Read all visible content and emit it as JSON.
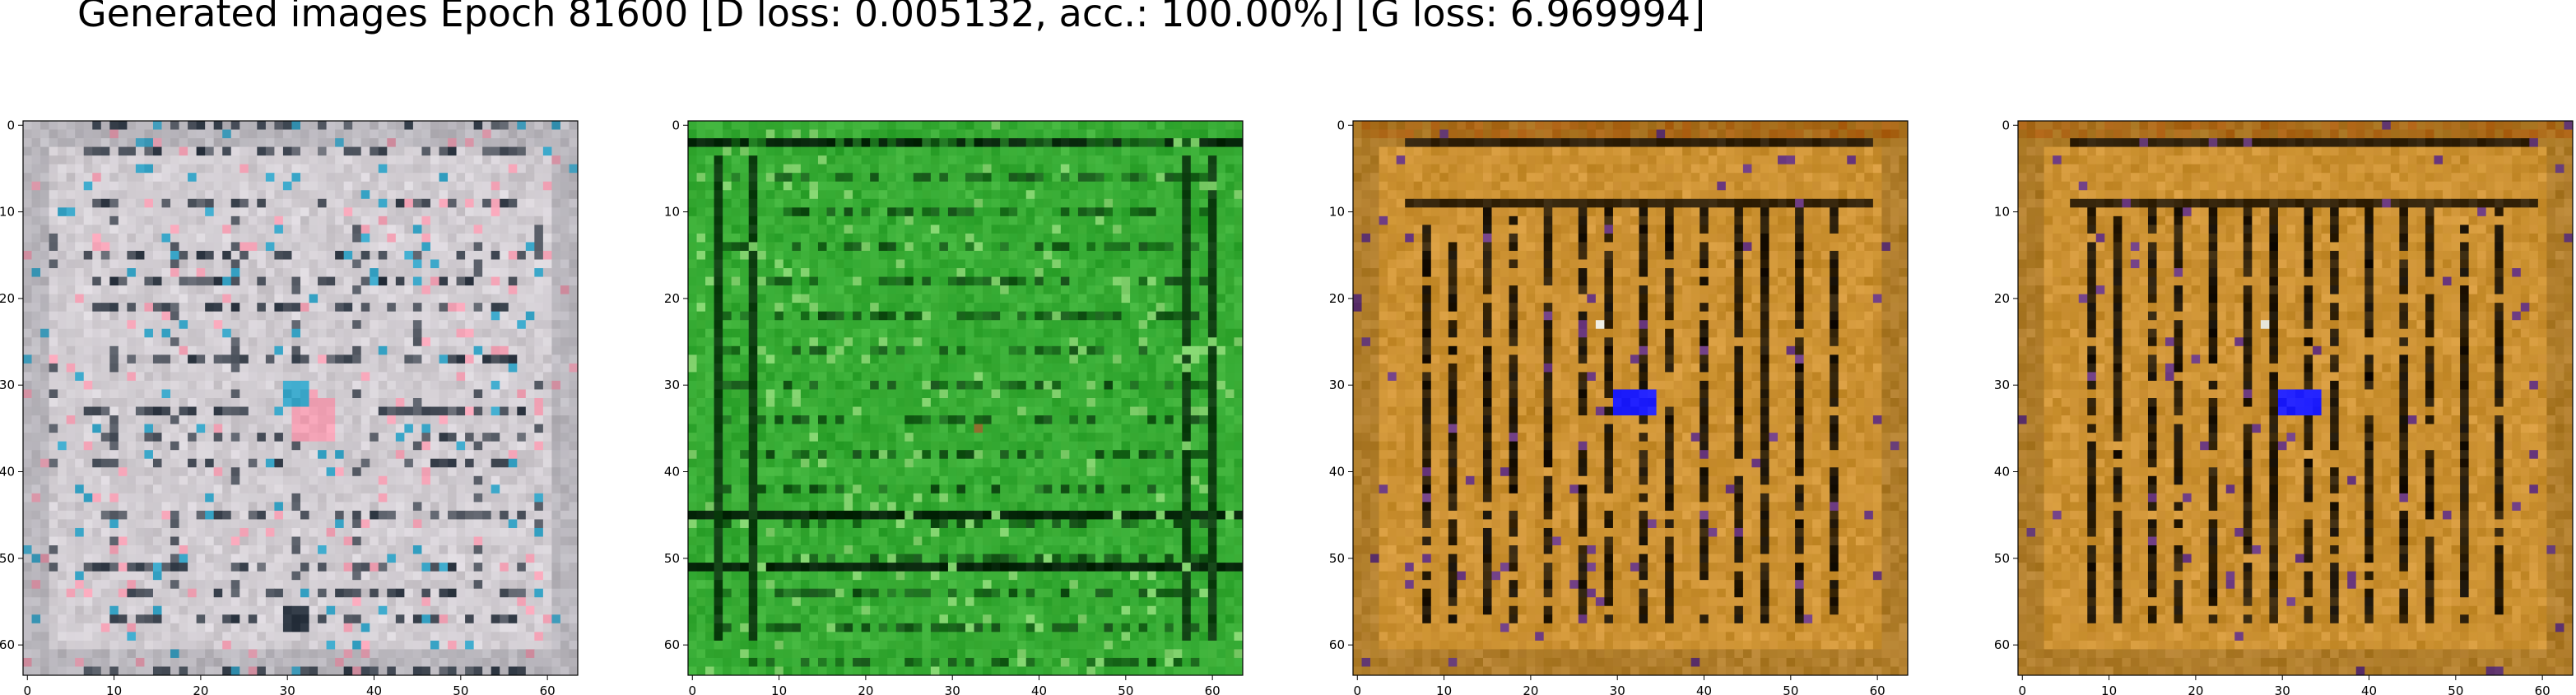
{
  "figure": {
    "title": "Generated images Epoch 81600 [D loss: 0.005132, acc.: 100.00%] [G loss: 6.969994]"
  },
  "chart_data": [
    {
      "type": "heatmap",
      "image": "generated-sample-1",
      "palette": "pale-gray-pink",
      "base_color": "#c9c4c9",
      "dark_color": "#2b3440",
      "accent_colors": [
        "#f3a3b6",
        "#3aa6c8"
      ],
      "xlim": [
        0,
        63
      ],
      "ylim": [
        63,
        0
      ],
      "xticks": [
        0,
        10,
        20,
        30,
        40,
        50,
        60
      ],
      "yticks": [
        0,
        10,
        20,
        30,
        40,
        50,
        60
      ]
    },
    {
      "type": "heatmap",
      "image": "generated-sample-2",
      "palette": "green",
      "base_color": "#2da42d",
      "dark_color": "#06260a",
      "accent_colors": [
        "#7fd06b",
        "#8a6a2a"
      ],
      "xlim": [
        0,
        63
      ],
      "ylim": [
        63,
        0
      ],
      "xticks": [
        0,
        10,
        20,
        30,
        40,
        50,
        60
      ],
      "yticks": [
        0,
        10,
        20,
        30,
        40,
        50,
        60
      ]
    },
    {
      "type": "heatmap",
      "image": "generated-sample-3",
      "palette": "orange-brown",
      "base_color": "#c48a28",
      "dark_color": "#120c04",
      "accent_colors": [
        "#1f1fff",
        "#e8b05a"
      ],
      "xlim": [
        0,
        63
      ],
      "ylim": [
        63,
        0
      ],
      "xticks": [
        0,
        10,
        20,
        30,
        40,
        50,
        60
      ],
      "yticks": [
        0,
        10,
        20,
        30,
        40,
        50,
        60
      ]
    },
    {
      "type": "heatmap",
      "image": "generated-sample-4",
      "palette": "orange-brown",
      "base_color": "#c48a28",
      "dark_color": "#120c04",
      "accent_colors": [
        "#1f1fff",
        "#e8b05a"
      ],
      "xlim": [
        0,
        63
      ],
      "ylim": [
        63,
        0
      ],
      "xticks": [
        0,
        10,
        20,
        30,
        40,
        50,
        60
      ],
      "yticks": [
        0,
        10,
        20,
        30,
        40,
        50,
        60
      ]
    }
  ]
}
